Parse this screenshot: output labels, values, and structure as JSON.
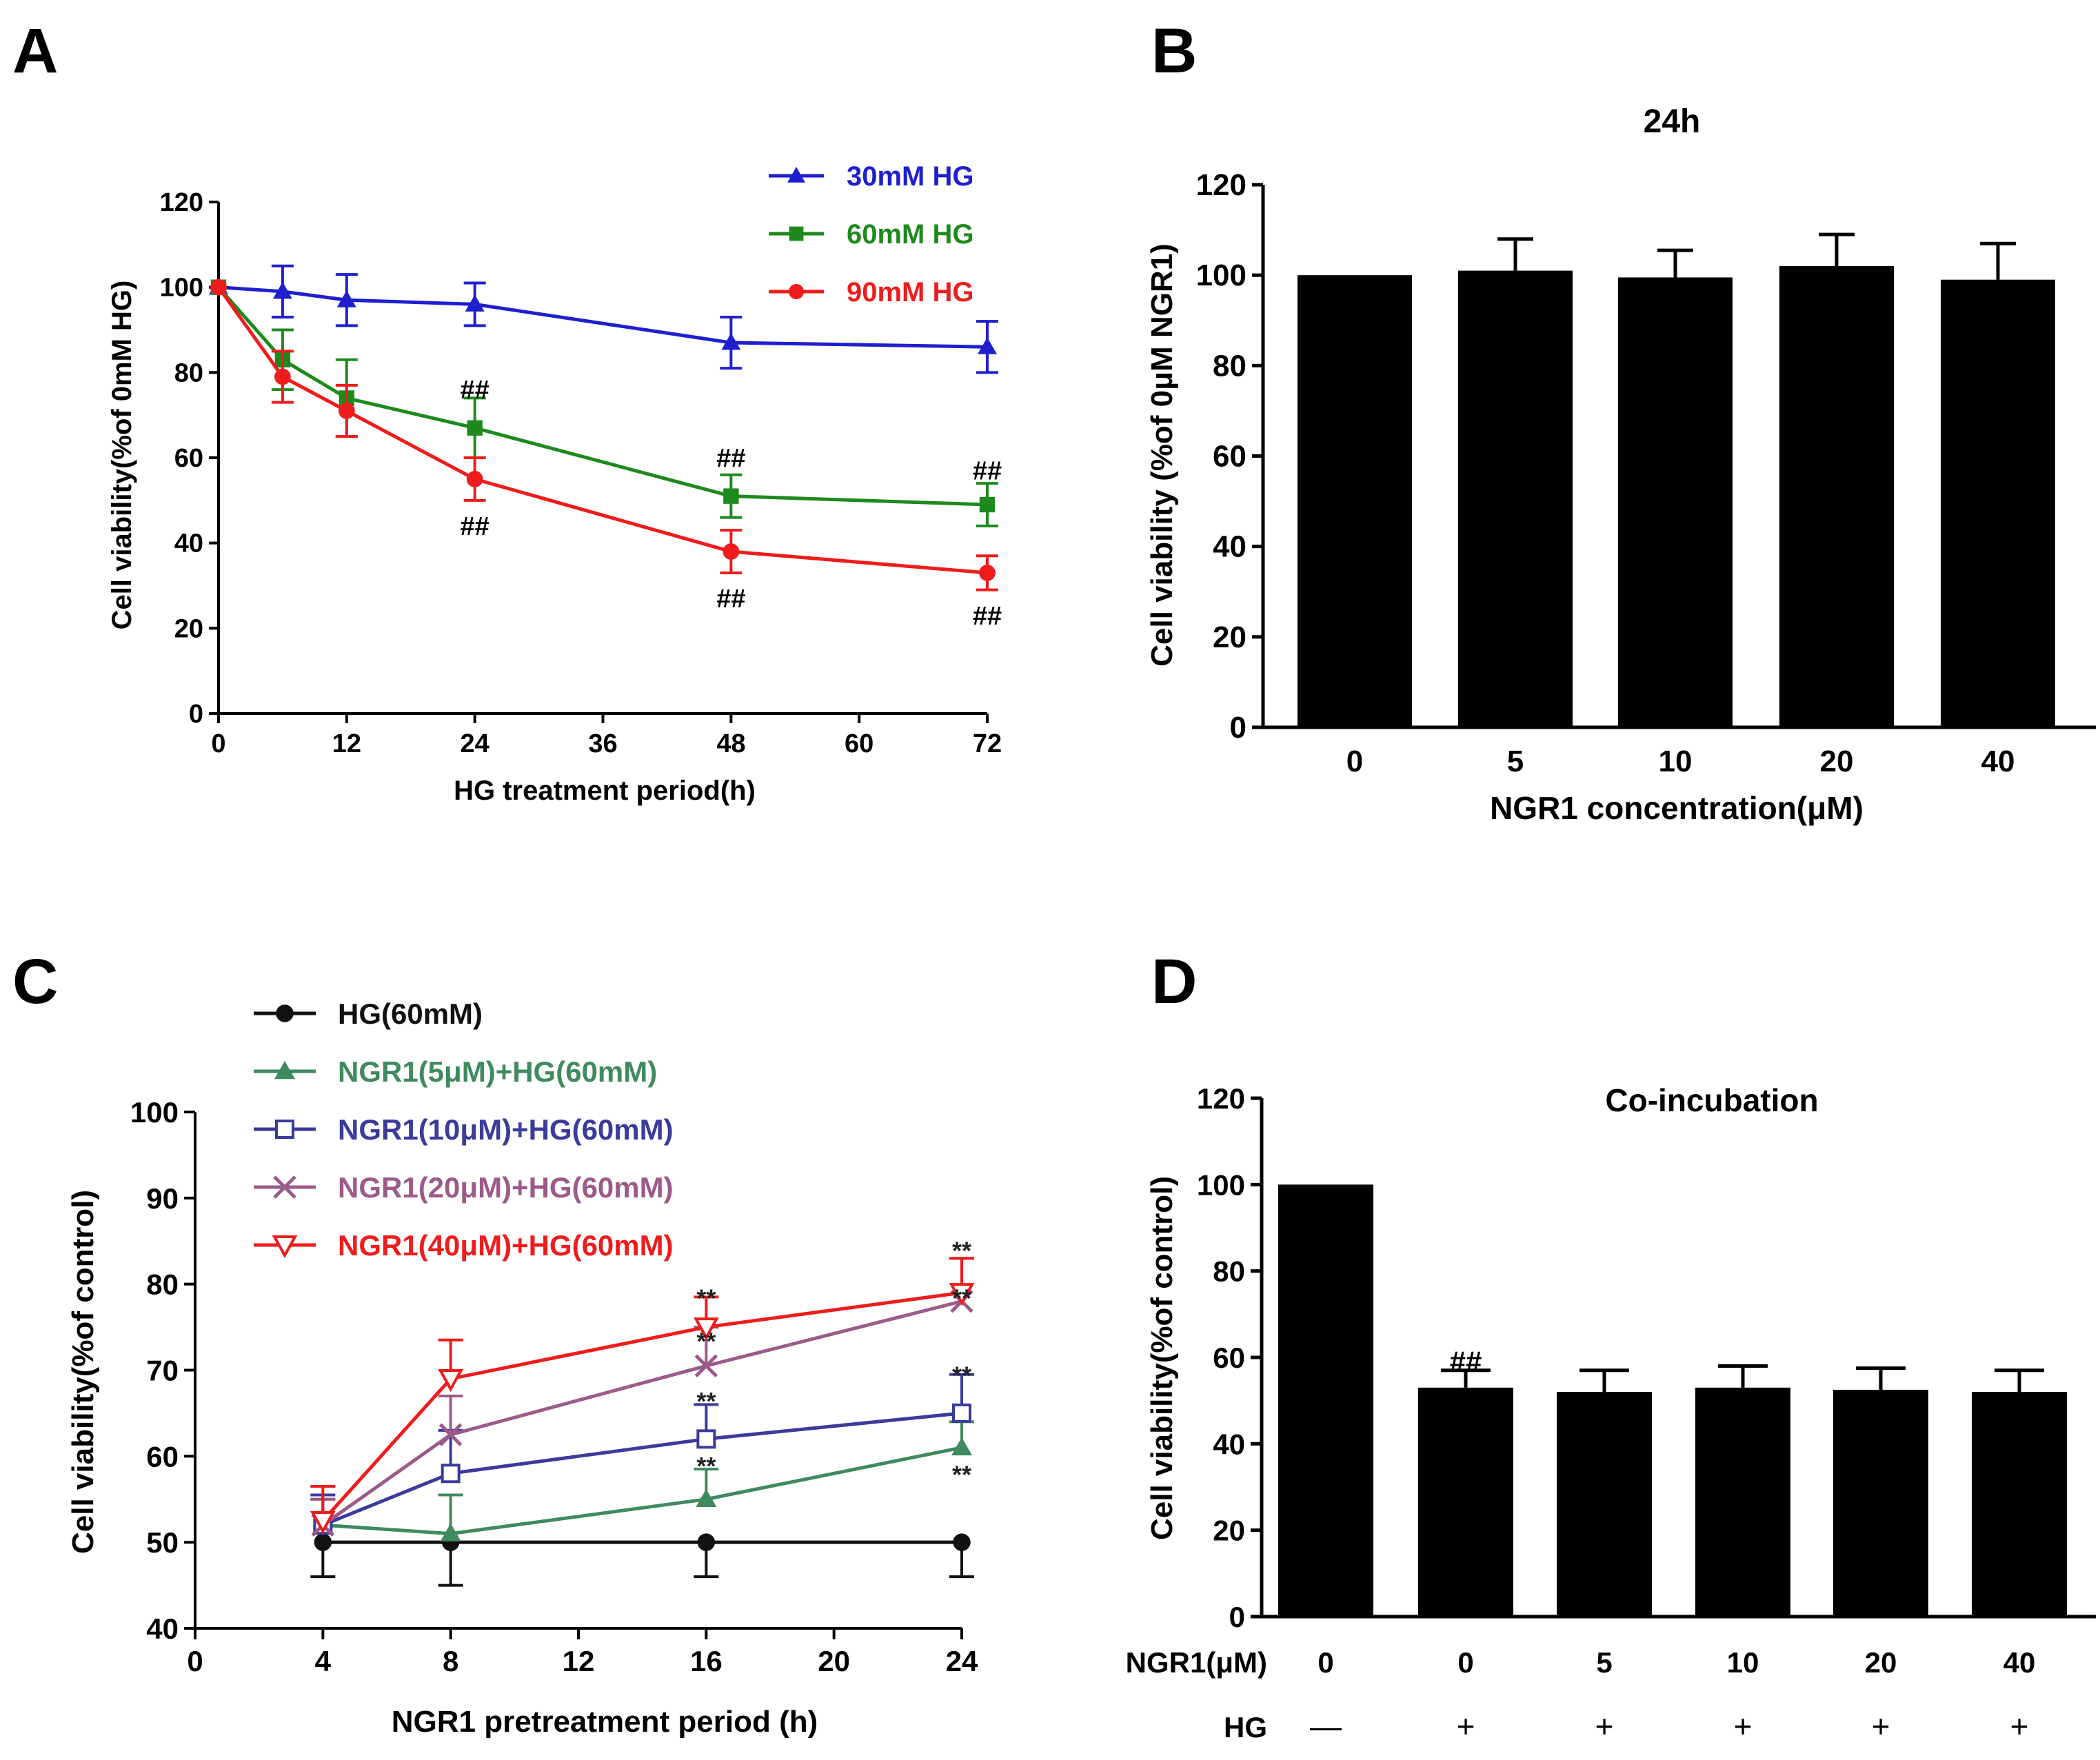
{
  "chart_data": [
    {
      "panel": "A",
      "type": "line",
      "title": "",
      "xlabel": "HG treatment period(h)",
      "ylabel": "Cell viability(%of 0mM HG)",
      "xlim": [
        0,
        72
      ],
      "ylim": [
        0,
        120
      ],
      "x_ticks": [
        "0",
        "12",
        "24",
        "36",
        "48",
        "60",
        "72"
      ],
      "y_ticks": [
        "0",
        "20",
        "40",
        "60",
        "80",
        "100",
        "120"
      ],
      "grid": false,
      "legend_position": "top-right",
      "series": [
        {
          "name": "30mM HG",
          "color": "#1f1fcf",
          "marker": "triangle",
          "x": [
            0,
            6,
            12,
            24,
            48,
            72
          ],
          "y": [
            100,
            99,
            97,
            96,
            87,
            86
          ],
          "err": [
            0,
            6,
            6,
            5,
            6,
            6
          ]
        },
        {
          "name": "60mM HG",
          "color": "#1e8a1e",
          "marker": "square",
          "x": [
            0,
            6,
            12,
            24,
            48,
            72
          ],
          "y": [
            100,
            83,
            74,
            67,
            51,
            49
          ],
          "err": [
            0,
            7,
            9,
            7,
            5,
            5
          ]
        },
        {
          "name": "90mM HG",
          "color": "#ee1c1c",
          "marker": "circle",
          "x": [
            0,
            6,
            12,
            24,
            48,
            72
          ],
          "y": [
            100,
            79,
            71,
            55,
            38,
            33
          ],
          "err": [
            0,
            6,
            6,
            5,
            5,
            4
          ]
        }
      ],
      "annotations": [
        {
          "text": "##",
          "x": 24,
          "y": 76
        },
        {
          "text": "##",
          "x": 24,
          "y": 44
        },
        {
          "text": "##",
          "x": 48,
          "y": 60
        },
        {
          "text": "##",
          "x": 48,
          "y": 27
        },
        {
          "text": "##",
          "x": 72,
          "y": 57
        },
        {
          "text": "##",
          "x": 72,
          "y": 23
        }
      ]
    },
    {
      "panel": "B",
      "type": "bar",
      "title": "24h",
      "xlabel": "NGR1 concentration(μM)",
      "ylabel": "Cell viability (%of 0μM NGR1)",
      "ylim": [
        0,
        120
      ],
      "y_ticks": [
        "0",
        "20",
        "40",
        "60",
        "80",
        "100",
        "120"
      ],
      "categories": [
        "0",
        "5",
        "10",
        "20",
        "40"
      ],
      "values": [
        100,
        101,
        99.5,
        102,
        99
      ],
      "err": [
        0,
        7,
        6,
        7,
        8
      ],
      "color": "#000000"
    },
    {
      "panel": "C",
      "type": "line",
      "title": "",
      "xlabel": "NGR1 pretreatment period (h)",
      "ylabel": "Cell viability(%of control)",
      "xlim": [
        0,
        24
      ],
      "ylim": [
        40,
        100
      ],
      "x_ticks": [
        "0",
        "4",
        "8",
        "12",
        "16",
        "20",
        "24"
      ],
      "y_ticks": [
        "40",
        "50",
        "60",
        "70",
        "80",
        "90",
        "100"
      ],
      "grid": false,
      "legend_position": "top-left",
      "series": [
        {
          "name": "HG(60mM)",
          "color": "#111111",
          "marker": "circle",
          "x": [
            4,
            8,
            16,
            24
          ],
          "y": [
            50,
            50,
            50,
            50
          ],
          "err": [
            4,
            5,
            4,
            4
          ],
          "err_dir": "down"
        },
        {
          "name": "NGR1(5μM)+HG(60mM)",
          "color": "#3f8a5e",
          "marker": "triangle",
          "x": [
            4,
            8,
            16,
            24
          ],
          "y": [
            52,
            51,
            55,
            61
          ],
          "err": [
            3,
            4.5,
            3.5,
            3
          ],
          "err_dir": "up"
        },
        {
          "name": "NGR1(10μM)+HG(60mM)",
          "color": "#3b3b9c",
          "marker": "open-square",
          "x": [
            4,
            8,
            16,
            24
          ],
          "y": [
            52,
            58,
            62,
            65
          ],
          "err": [
            3.5,
            5,
            4,
            4.5
          ],
          "err_dir": "up"
        },
        {
          "name": "NGR1(20μM)+HG(60mM)",
          "color": "#9c5a8a",
          "marker": "x",
          "x": [
            4,
            8,
            16,
            24
          ],
          "y": [
            52,
            62.5,
            70.5,
            78
          ],
          "err": [
            3,
            4.5,
            4.5,
            5
          ],
          "err_dir": "up"
        },
        {
          "name": "NGR1(40μM)+HG(60mM)",
          "color": "#ee1c1c",
          "marker": "open-triangle-down",
          "x": [
            4,
            8,
            16,
            24
          ],
          "y": [
            52.5,
            69,
            75,
            79
          ],
          "err": [
            4,
            4.5,
            3.5,
            4
          ],
          "err_dir": "up"
        }
      ],
      "annotations": [
        {
          "text": "**",
          "x": 16,
          "y": 78.5
        },
        {
          "text": "**",
          "x": 16,
          "y": 73.5
        },
        {
          "text": "**",
          "x": 16,
          "y": 66.5
        },
        {
          "text": "**",
          "x": 16,
          "y": 59
        },
        {
          "text": "**",
          "x": 24,
          "y": 84
        },
        {
          "text": "**",
          "x": 24,
          "y": 78.5
        },
        {
          "text": "**",
          "x": 24,
          "y": 69.5
        },
        {
          "text": "**",
          "x": 24,
          "y": 58
        }
      ]
    },
    {
      "panel": "D",
      "type": "bar",
      "title": "Co-incubation",
      "xlabel": "",
      "ylabel": "Cell viability(%of control)",
      "ylim": [
        0,
        120
      ],
      "y_ticks": [
        "0",
        "20",
        "40",
        "60",
        "80",
        "100",
        "120"
      ],
      "categories": [
        "0",
        "0",
        "5",
        "10",
        "20",
        "40"
      ],
      "values": [
        100,
        53,
        52,
        53,
        52.5,
        52
      ],
      "err": [
        0,
        4,
        5,
        5,
        5,
        5
      ],
      "color": "#000000",
      "row_labels": [
        {
          "label": "NGR1(μM)",
          "values": [
            "0",
            "0",
            "5",
            "10",
            "20",
            "40"
          ]
        },
        {
          "label": "HG",
          "values": [
            "—",
            "+",
            "+",
            "+",
            "+",
            "+"
          ]
        }
      ],
      "annotations": [
        {
          "text": "##",
          "category_index": 1,
          "y": 59
        }
      ]
    }
  ]
}
